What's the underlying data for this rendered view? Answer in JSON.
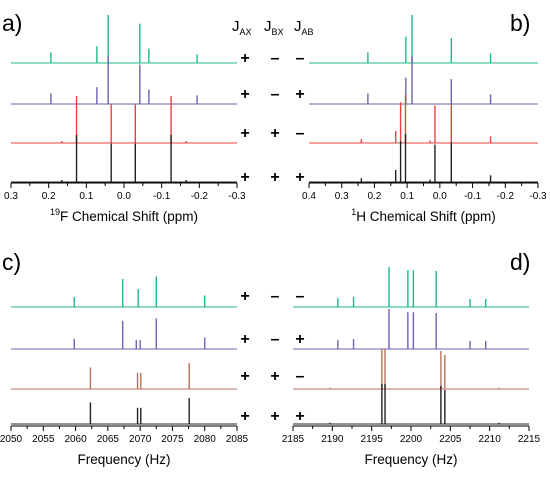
{
  "colors": {
    "green": "#1fb887",
    "purple": "#6a63b3",
    "red": "#e8433f",
    "brown": "#b8735a",
    "black": "#222222"
  },
  "coupling_header": [
    "J_AX",
    "J_BX",
    "J_AB"
  ],
  "sign_rows": [
    [
      "+",
      "–",
      "–"
    ],
    [
      "+",
      "–",
      "+"
    ],
    [
      "+",
      "+",
      "–"
    ],
    [
      "+",
      "+",
      "+"
    ]
  ],
  "chart_data": [
    {
      "panel": "a)",
      "type": "line",
      "xlabel": "19F Chemical Shift (ppm)",
      "xlabel_parts": [
        "19",
        "F Chemical Shift (ppm)"
      ],
      "xlim": [
        0.3,
        -0.3
      ],
      "reversed": true,
      "xticks": [
        "0.3",
        "0.2",
        "0.1",
        "0.0",
        "-0.1",
        "-0.2",
        "-0.3"
      ],
      "xtick_values": [
        0.3,
        0.2,
        0.1,
        0.0,
        -0.1,
        -0.2,
        -0.3
      ],
      "series": [
        {
          "color": "green",
          "peaks": [
            {
              "x": 0.194,
              "h": 0.22
            },
            {
              "x": 0.072,
              "h": 0.35
            },
            {
              "x": 0.042,
              "h": 1.0
            },
            {
              "x": -0.042,
              "h": 0.82
            },
            {
              "x": -0.066,
              "h": 0.3
            },
            {
              "x": -0.194,
              "h": 0.18
            }
          ]
        },
        {
          "color": "purple",
          "peaks": [
            {
              "x": 0.194,
              "h": 0.22
            },
            {
              "x": 0.072,
              "h": 0.35
            },
            {
              "x": 0.042,
              "h": 1.0
            },
            {
              "x": -0.042,
              "h": 0.82
            },
            {
              "x": -0.066,
              "h": 0.3
            },
            {
              "x": -0.194,
              "h": 0.18
            }
          ]
        },
        {
          "color": "red",
          "peaks": [
            {
              "x": 0.126,
              "h": 0.98
            },
            {
              "x": 0.034,
              "h": 0.8
            },
            {
              "x": -0.03,
              "h": 0.8
            },
            {
              "x": -0.125,
              "h": 0.98
            },
            {
              "x": 0.165,
              "h": 0.04
            },
            {
              "x": -0.165,
              "h": 0.04
            }
          ]
        },
        {
          "color": "black",
          "peaks": [
            {
              "x": 0.126,
              "h": 0.98
            },
            {
              "x": 0.034,
              "h": 0.8
            },
            {
              "x": -0.03,
              "h": 0.8
            },
            {
              "x": -0.125,
              "h": 0.98
            },
            {
              "x": 0.165,
              "h": 0.04
            },
            {
              "x": -0.165,
              "h": 0.04
            }
          ]
        }
      ]
    },
    {
      "panel": "b)",
      "type": "line",
      "xlabel": "1H Chemical Shift (ppm)",
      "xlabel_parts": [
        "1",
        "H Chemical Shift (ppm)"
      ],
      "xlim": [
        0.4,
        -0.3
      ],
      "reversed": true,
      "xticks": [
        "0.4",
        "0.3",
        "0.2",
        "0.1",
        "0.0",
        "-0.1",
        "-0.2",
        "-0.3"
      ],
      "xtick_values": [
        0.4,
        0.3,
        0.2,
        0.1,
        0.0,
        -0.1,
        -0.2,
        -0.3
      ],
      "series": [
        {
          "color": "green",
          "peaks": [
            {
              "x": 0.22,
              "h": 0.22
            },
            {
              "x": 0.104,
              "h": 0.55
            },
            {
              "x": 0.085,
              "h": 1.0
            },
            {
              "x": -0.035,
              "h": 0.52
            },
            {
              "x": -0.155,
              "h": 0.2
            }
          ]
        },
        {
          "color": "purple",
          "peaks": [
            {
              "x": 0.22,
              "h": 0.22
            },
            {
              "x": 0.104,
              "h": 0.55
            },
            {
              "x": 0.085,
              "h": 1.0
            },
            {
              "x": -0.035,
              "h": 0.52
            },
            {
              "x": -0.155,
              "h": 0.2
            }
          ]
        },
        {
          "color": "red",
          "peaks": [
            {
              "x": 0.24,
              "h": 0.08
            },
            {
              "x": 0.135,
              "h": 0.25
            },
            {
              "x": 0.12,
              "h": 0.85
            },
            {
              "x": 0.105,
              "h": 1.0
            },
            {
              "x": 0.03,
              "h": 0.05
            },
            {
              "x": 0.015,
              "h": 0.78
            },
            {
              "x": -0.035,
              "h": 0.82
            },
            {
              "x": -0.155,
              "h": 0.14
            }
          ]
        },
        {
          "color": "black",
          "peaks": [
            {
              "x": 0.24,
              "h": 0.08
            },
            {
              "x": 0.135,
              "h": 0.25
            },
            {
              "x": 0.12,
              "h": 0.85
            },
            {
              "x": 0.105,
              "h": 1.0
            },
            {
              "x": 0.03,
              "h": 0.05
            },
            {
              "x": 0.015,
              "h": 0.78
            },
            {
              "x": -0.035,
              "h": 0.82
            },
            {
              "x": -0.155,
              "h": 0.14
            }
          ]
        }
      ]
    },
    {
      "panel": "c)",
      "type": "line",
      "xlabel": "Frequency (Hz)",
      "xlim": [
        2050,
        2085
      ],
      "reversed": false,
      "xticks": [
        "2050",
        "2055",
        "2060",
        "2065",
        "2070",
        "2075",
        "2080",
        "2085"
      ],
      "xtick_values": [
        2050,
        2055,
        2060,
        2065,
        2070,
        2075,
        2080,
        2085
      ],
      "series": [
        {
          "color": "green",
          "peaks": [
            {
              "x": 2059.8,
              "h": 0.28
            },
            {
              "x": 2067.3,
              "h": 0.78
            },
            {
              "x": 2069.7,
              "h": 0.5
            },
            {
              "x": 2072.5,
              "h": 0.85
            },
            {
              "x": 2080.0,
              "h": 0.32
            }
          ]
        },
        {
          "color": "purple",
          "peaks": [
            {
              "x": 2059.8,
              "h": 0.28
            },
            {
              "x": 2067.3,
              "h": 0.78
            },
            {
              "x": 2069.4,
              "h": 0.25
            },
            {
              "x": 2070.0,
              "h": 0.25
            },
            {
              "x": 2072.5,
              "h": 0.85
            },
            {
              "x": 2080.0,
              "h": 0.32
            }
          ]
        },
        {
          "color": "brown",
          "peaks": [
            {
              "x": 2062.3,
              "h": 0.6
            },
            {
              "x": 2069.6,
              "h": 0.45
            },
            {
              "x": 2070.1,
              "h": 0.45
            },
            {
              "x": 2077.6,
              "h": 0.72
            }
          ]
        },
        {
          "color": "black",
          "peaks": [
            {
              "x": 2062.3,
              "h": 0.6
            },
            {
              "x": 2069.6,
              "h": 0.45
            },
            {
              "x": 2070.1,
              "h": 0.45
            },
            {
              "x": 2077.6,
              "h": 0.72
            }
          ]
        }
      ]
    },
    {
      "panel": "d)",
      "type": "line",
      "xlabel": "Frequency (Hz)",
      "xlim": [
        2185,
        2215
      ],
      "reversed": false,
      "xticks": [
        "2185",
        "2190",
        "2195",
        "2200",
        "2205",
        "2210",
        "2215"
      ],
      "xtick_values": [
        2185,
        2190,
        2195,
        2200,
        2205,
        2210,
        2215
      ],
      "series": [
        {
          "color": "green",
          "peaks": [
            {
              "x": 2190.7,
              "h": 0.22
            },
            {
              "x": 2192.7,
              "h": 0.25
            },
            {
              "x": 2197.2,
              "h": 1.0
            },
            {
              "x": 2199.6,
              "h": 0.92
            },
            {
              "x": 2200.3,
              "h": 0.92
            },
            {
              "x": 2203.2,
              "h": 0.9
            },
            {
              "x": 2207.5,
              "h": 0.2
            },
            {
              "x": 2209.5,
              "h": 0.2
            }
          ]
        },
        {
          "color": "purple",
          "peaks": [
            {
              "x": 2190.7,
              "h": 0.22
            },
            {
              "x": 2192.7,
              "h": 0.25
            },
            {
              "x": 2197.2,
              "h": 1.0
            },
            {
              "x": 2199.6,
              "h": 0.92
            },
            {
              "x": 2200.3,
              "h": 0.92
            },
            {
              "x": 2203.2,
              "h": 0.9
            },
            {
              "x": 2207.5,
              "h": 0.2
            },
            {
              "x": 2209.5,
              "h": 0.2
            }
          ]
        },
        {
          "color": "brown",
          "peaks": [
            {
              "x": 2196.3,
              "h": 1.0
            },
            {
              "x": 2196.7,
              "h": 1.0
            },
            {
              "x": 2203.8,
              "h": 0.95
            },
            {
              "x": 2204.3,
              "h": 0.85
            },
            {
              "x": 2189.7,
              "h": 0.03
            },
            {
              "x": 2211.2,
              "h": 0.03
            }
          ]
        },
        {
          "color": "black",
          "peaks": [
            {
              "x": 2196.3,
              "h": 1.0
            },
            {
              "x": 2196.7,
              "h": 1.0
            },
            {
              "x": 2203.8,
              "h": 0.95
            },
            {
              "x": 2204.3,
              "h": 0.85
            },
            {
              "x": 2189.7,
              "h": 0.03
            },
            {
              "x": 2211.2,
              "h": 0.03
            }
          ]
        }
      ]
    }
  ]
}
